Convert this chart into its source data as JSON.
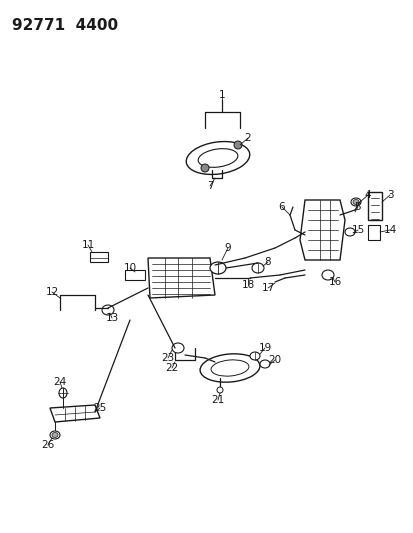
{
  "title": "92771  4400",
  "bg_color": "#ffffff",
  "line_color": "#1a1a1a",
  "title_fontsize": 11,
  "label_fontsize": 7.5,
  "lw": 0.9
}
